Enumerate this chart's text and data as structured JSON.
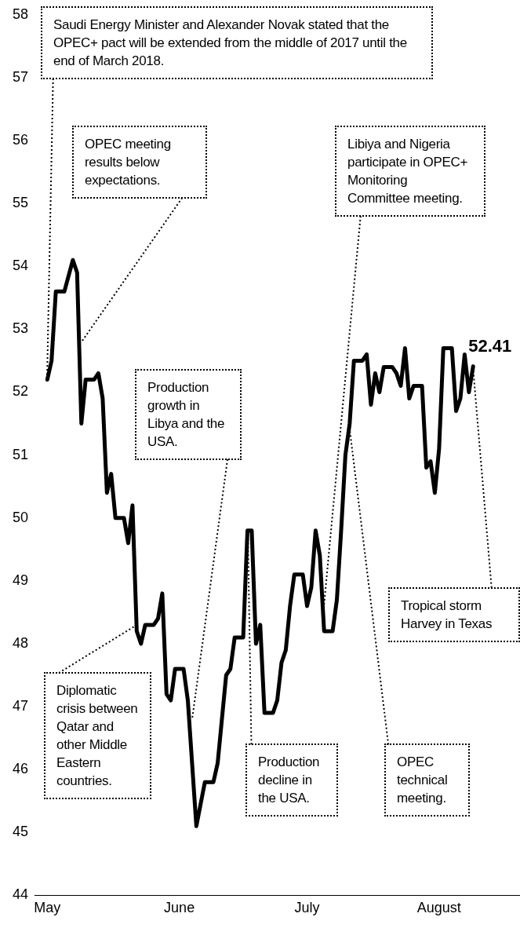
{
  "chart_data": {
    "type": "line",
    "x": [
      "--05-01",
      "--05-02",
      "--05-03",
      "--05-05",
      "--05-07",
      "--05-08",
      "--05-09",
      "--05-10",
      "--05-12",
      "--05-13",
      "--05-14",
      "--05-15",
      "--05-16",
      "--05-17",
      "--05-19",
      "--05-20",
      "--05-21",
      "--05-22",
      "--05-23",
      "--05-24",
      "--05-26",
      "--05-27",
      "--05-28",
      "--05-29",
      "--05-30",
      "--05-31",
      "--06-02",
      "--06-03",
      "--06-05",
      "--06-07",
      "--06-09",
      "--06-10",
      "--06-12",
      "--06-13",
      "--06-14",
      "--06-16",
      "--06-17",
      "--06-18",
      "--06-19",
      "--06-20",
      "--06-21",
      "--06-23",
      "--06-24",
      "--06-25",
      "--06-26",
      "--06-27",
      "--06-28",
      "--06-30",
      "--07-01",
      "--07-02",
      "--07-03",
      "--07-04",
      "--07-05",
      "--07-07",
      "--07-08",
      "--07-09",
      "--07-10",
      "--07-11",
      "--07-12",
      "--07-14",
      "--07-15",
      "--07-16",
      "--07-17",
      "--07-18",
      "--07-19",
      "--07-21",
      "--07-22",
      "--07-23",
      "--07-24",
      "--07-25",
      "--07-26",
      "--07-28",
      "--07-29",
      "--07-30",
      "--07-31",
      "--08-01",
      "--08-02",
      "--08-04",
      "--08-05",
      "--08-06",
      "--08-07",
      "--08-08",
      "--08-09"
    ],
    "series": [
      {
        "color": "#000000",
        "values": [
          52.2,
          52.5,
          53.6,
          53.6,
          54.1,
          53.9,
          51.5,
          52.2,
          52.2,
          52.3,
          51.9,
          50.4,
          50.7,
          50.0,
          50.0,
          49.6,
          50.2,
          48.2,
          48.0,
          48.3,
          48.3,
          48.4,
          48.8,
          47.2,
          47.1,
          47.6,
          47.6,
          47.1,
          45.1,
          45.8,
          45.8,
          46.1,
          47.5,
          47.6,
          48.1,
          48.1,
          49.8,
          49.8,
          48.0,
          48.3,
          46.9,
          46.9,
          47.1,
          47.7,
          47.9,
          48.6,
          49.1,
          49.1,
          48.6,
          48.9,
          49.8,
          49.4,
          48.2,
          48.2,
          48.7,
          49.8,
          51.0,
          51.5,
          52.5,
          52.5,
          52.6,
          51.8,
          52.3,
          52.0,
          52.4,
          52.4,
          52.3,
          52.1,
          52.7,
          51.9,
          52.1,
          52.1,
          50.8,
          50.9,
          50.4,
          51.1,
          52.7,
          52.7,
          51.7,
          51.9,
          52.6,
          52.0,
          52.41
        ],
        "value_labels": [
          null,
          null,
          null,
          null,
          null,
          null,
          null,
          null,
          null,
          null,
          null,
          null,
          null,
          null,
          null,
          null,
          null,
          null,
          null,
          null,
          null,
          null,
          null,
          null,
          null,
          null,
          null,
          null,
          null,
          null,
          null,
          null,
          null,
          null,
          null,
          null,
          null,
          null,
          null,
          null,
          null,
          null,
          null,
          null,
          null,
          null,
          null,
          null,
          null,
          null,
          null,
          null,
          null,
          null,
          null,
          null,
          null,
          null,
          null,
          null,
          null,
          null,
          null,
          null,
          null,
          null,
          null,
          null,
          null,
          null,
          null,
          null,
          null,
          null,
          null,
          null,
          null,
          null,
          null,
          null,
          null,
          null,
          "52.41"
        ]
      }
    ],
    "xticks": [
      {
        "value": "--05-01",
        "label": "May"
      },
      {
        "value": "--06-01",
        "label": "June"
      },
      {
        "value": "--07-01",
        "label": "July"
      },
      {
        "value": "--08-01",
        "label": "August"
      }
    ],
    "xlim": [
      "--04-28",
      "--08-20"
    ],
    "ylim": [
      44,
      58
    ],
    "yticks": [
      44,
      45,
      46,
      47,
      48,
      49,
      50,
      51,
      52,
      53,
      54,
      55,
      56,
      57,
      58
    ],
    "annotations": [
      {
        "text": "Saudi Energy Minister and Alexander Novak stated that the OPEC+ pact will be extended from the middle of 2017 until the end of March 2018.",
        "x": "--05-01",
        "y": 52.2
      },
      {
        "text": "OPEC meeting results below expectations.",
        "x": "--05-09",
        "y": 52.8
      },
      {
        "text": "Production growth in Libya and the USA.",
        "x": "--06-04",
        "y": 46.8
      },
      {
        "text": "Libiya and Nigeria participate in OPEC+ Monitoring Committee meeting.",
        "x": "--07-05",
        "y": 48.6
      },
      {
        "text": "Diplomatic crisis between Qatar and other Middle Eastern countries.",
        "x": "--05-22",
        "y": 48.3
      },
      {
        "text": "Production decline in the USA.",
        "x": "--06-17",
        "y": 49.8
      },
      {
        "text": "OPEC technical meeting.",
        "x": "--07-11",
        "y": 51.4
      },
      {
        "text": "Tropical storm Harvey in Texas",
        "x": "--08-09",
        "y": 52.4
      }
    ]
  }
}
